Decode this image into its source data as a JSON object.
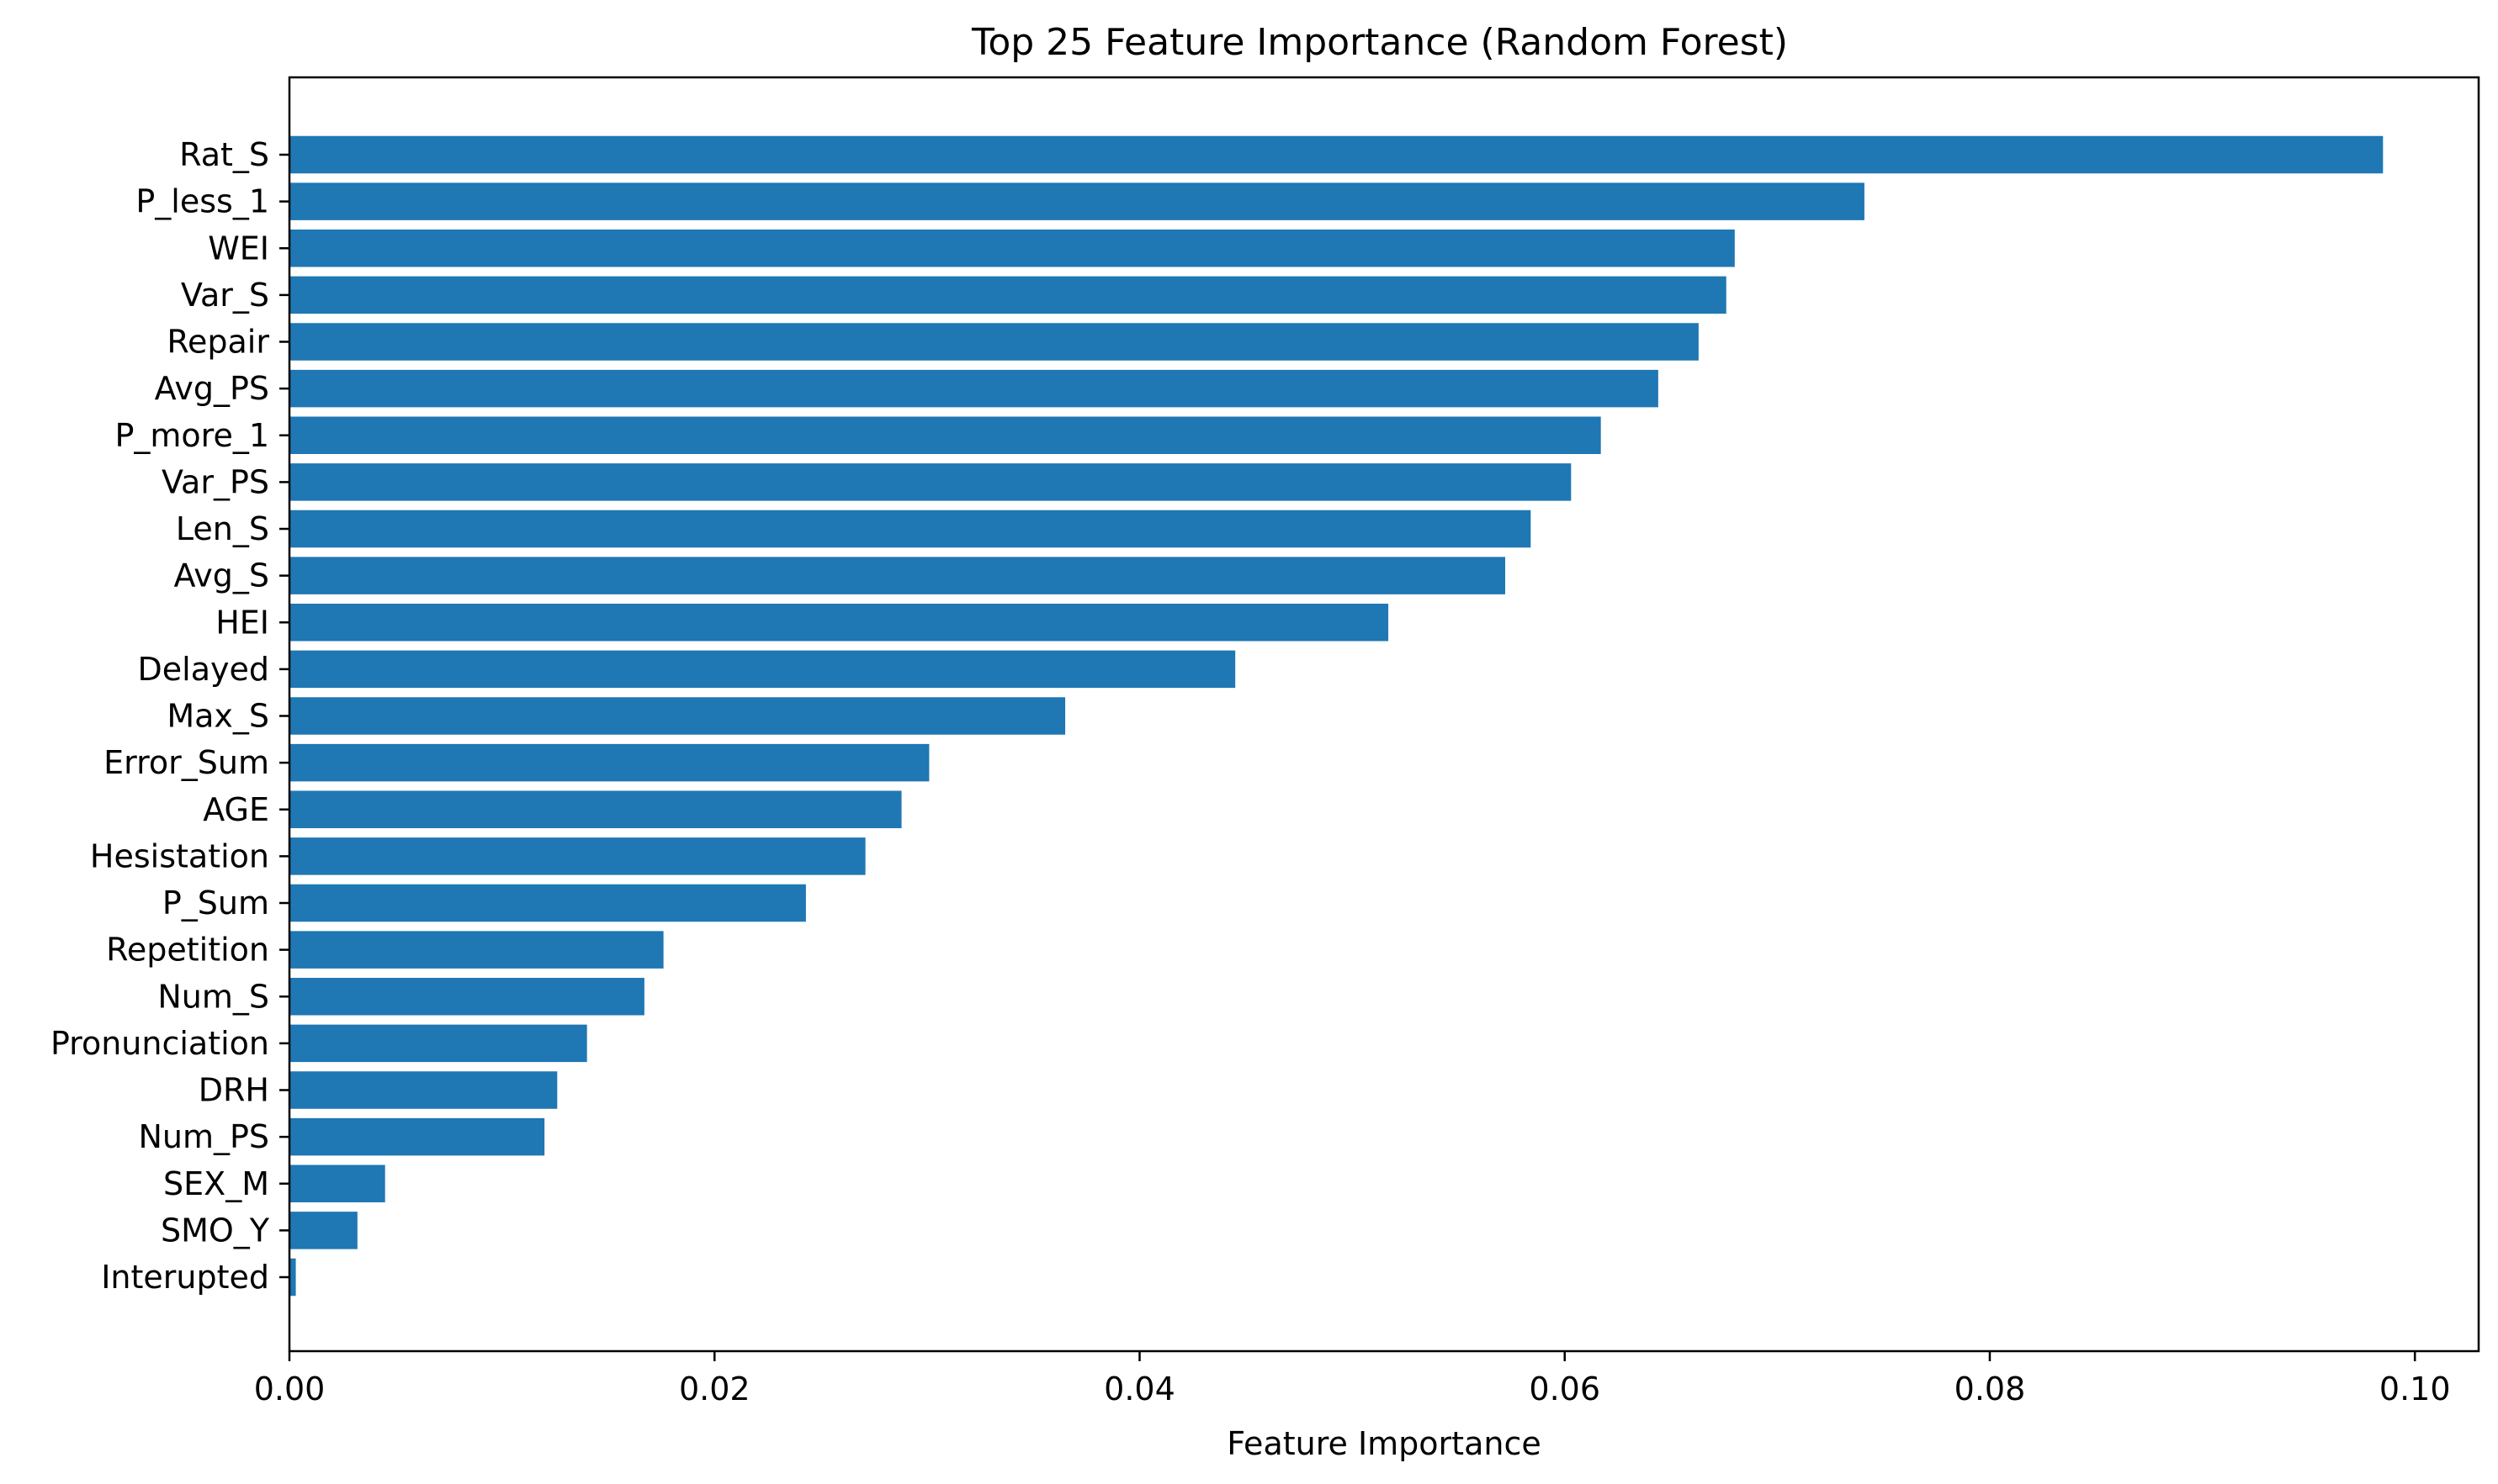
{
  "chart_data": {
    "type": "bar",
    "orientation": "horizontal",
    "title": "Top 25 Feature Importance (Random Forest)",
    "xlabel": "Feature Importance",
    "ylabel": "",
    "xlim": [
      0.0,
      0.103
    ],
    "xticks": [
      0.0,
      0.02,
      0.04,
      0.06,
      0.08,
      0.1
    ],
    "xtick_labels": [
      "0.00",
      "0.02",
      "0.04",
      "0.06",
      "0.08",
      "0.10"
    ],
    "grid": false,
    "bar_color": "#1f77b4",
    "categories": [
      "Rat_S",
      "P_less_1",
      "WEI",
      "Var_S",
      "Repair",
      "Avg_PS",
      "P_more_1",
      "Var_PS",
      "Len_S",
      "Avg_S",
      "HEI",
      "Delayed",
      "Max_S",
      "Error_Sum",
      "AGE",
      "Hesistation",
      "P_Sum",
      "Repetition",
      "Num_S",
      "Pronunciation",
      "DRH",
      "Num_PS",
      "SEX_M",
      "SMO_Y",
      "Interupted"
    ],
    "values": [
      0.0985,
      0.0741,
      0.068,
      0.0676,
      0.0663,
      0.0644,
      0.0617,
      0.0603,
      0.0584,
      0.0572,
      0.0517,
      0.0445,
      0.0365,
      0.0301,
      0.0288,
      0.0271,
      0.0243,
      0.0176,
      0.0167,
      0.014,
      0.0126,
      0.012,
      0.0045,
      0.0032,
      0.0003
    ]
  }
}
